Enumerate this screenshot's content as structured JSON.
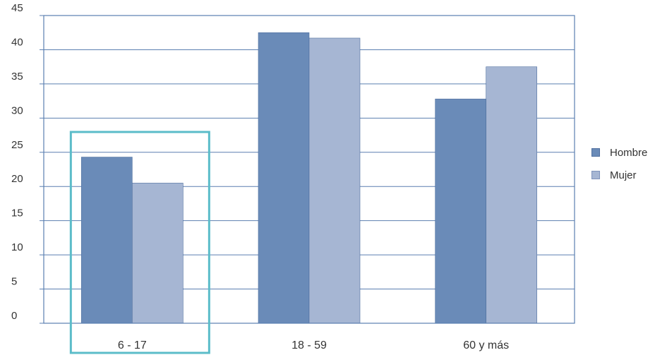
{
  "chart_data": {
    "type": "bar",
    "categories": [
      "6 - 17",
      "18 - 59",
      "60 y más"
    ],
    "series": [
      {
        "name": "Hombre",
        "values": [
          24.3,
          42.5,
          32.8
        ],
        "color": "#6a8bb8"
      },
      {
        "name": "Mujer",
        "values": [
          20.5,
          41.7,
          37.5
        ],
        "color": "#a6b6d3"
      }
    ],
    "ylim": [
      0,
      45
    ],
    "yticks": [
      "0",
      "5",
      "10",
      "15",
      "20",
      "25",
      "30",
      "35",
      "40",
      "45"
    ],
    "grid": true,
    "legend_position": "right",
    "highlight": {
      "category": "6 - 17",
      "color": "#5bbcc9"
    }
  }
}
